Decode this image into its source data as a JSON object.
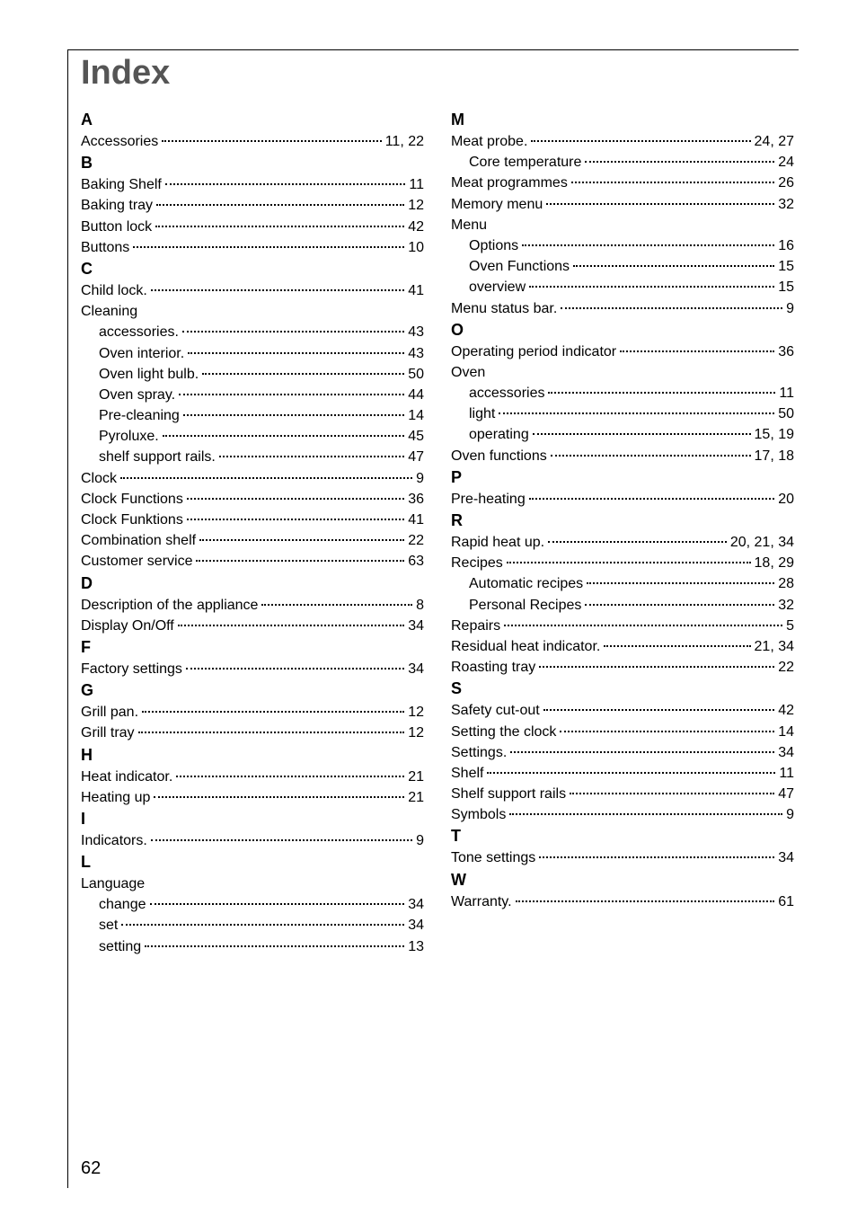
{
  "title": "Index",
  "page_number": "62",
  "left_column": [
    {
      "type": "letter",
      "text": "A"
    },
    {
      "type": "entry",
      "label": "Accessories",
      "page": "11, 22"
    },
    {
      "type": "letter",
      "text": "B"
    },
    {
      "type": "entry",
      "label": "Baking Shelf",
      "page": "11"
    },
    {
      "type": "entry",
      "label": "Baking tray",
      "page": "12"
    },
    {
      "type": "entry",
      "label": "Button lock",
      "page": "42"
    },
    {
      "type": "entry",
      "label": "Buttons",
      "page": "10"
    },
    {
      "type": "letter",
      "text": "C"
    },
    {
      "type": "entry",
      "label": "Child lock.",
      "page": "41"
    },
    {
      "type": "heading",
      "label": "Cleaning"
    },
    {
      "type": "subentry",
      "label": "accessories.",
      "page": "43"
    },
    {
      "type": "subentry",
      "label": "Oven interior.",
      "page": "43"
    },
    {
      "type": "subentry",
      "label": "Oven light bulb.",
      "page": "50"
    },
    {
      "type": "subentry",
      "label": "Oven spray.",
      "page": "44"
    },
    {
      "type": "subentry",
      "label": "Pre-cleaning",
      "page": "14"
    },
    {
      "type": "subentry",
      "label": "Pyroluxe.",
      "page": "45"
    },
    {
      "type": "subentry",
      "label": "shelf support rails.",
      "page": "47"
    },
    {
      "type": "entry",
      "label": "Clock",
      "page": "9"
    },
    {
      "type": "entry",
      "label": "Clock Functions",
      "page": "36"
    },
    {
      "type": "entry",
      "label": "Clock Funktions",
      "page": "41"
    },
    {
      "type": "entry",
      "label": "Combination shelf",
      "page": "22"
    },
    {
      "type": "entry",
      "label": "Customer service",
      "page": "63"
    },
    {
      "type": "letter",
      "text": "D"
    },
    {
      "type": "entry",
      "label": "Description of the appliance",
      "page": "8"
    },
    {
      "type": "entry",
      "label": "Display On/Off",
      "page": "34"
    },
    {
      "type": "letter",
      "text": "F"
    },
    {
      "type": "entry",
      "label": "Factory settings",
      "page": "34"
    },
    {
      "type": "letter",
      "text": "G"
    },
    {
      "type": "entry",
      "label": "Grill pan.",
      "page": "12"
    },
    {
      "type": "entry",
      "label": "Grill tray",
      "page": "12"
    },
    {
      "type": "letter",
      "text": "H"
    },
    {
      "type": "entry",
      "label": "Heat indicator.",
      "page": "21"
    },
    {
      "type": "entry",
      "label": "Heating up",
      "page": "21"
    },
    {
      "type": "letter",
      "text": "I"
    },
    {
      "type": "entry",
      "label": "Indicators.",
      "page": "9"
    },
    {
      "type": "letter",
      "text": "L"
    },
    {
      "type": "heading",
      "label": "Language"
    },
    {
      "type": "subentry",
      "label": "change",
      "page": "34"
    },
    {
      "type": "subentry",
      "label": "set",
      "page": "34"
    },
    {
      "type": "subentry",
      "label": "setting",
      "page": "13"
    }
  ],
  "right_column": [
    {
      "type": "letter",
      "text": "M"
    },
    {
      "type": "entry",
      "label": "Meat probe.",
      "page": "24, 27"
    },
    {
      "type": "subentry",
      "label": "Core temperature",
      "page": "24"
    },
    {
      "type": "entry",
      "label": "Meat programmes",
      "page": "26"
    },
    {
      "type": "entry",
      "label": "Memory menu",
      "page": "32"
    },
    {
      "type": "heading",
      "label": "Menu"
    },
    {
      "type": "subentry",
      "label": "Options",
      "page": "16"
    },
    {
      "type": "subentry",
      "label": "Oven Functions",
      "page": "15"
    },
    {
      "type": "subentry",
      "label": "overview",
      "page": "15"
    },
    {
      "type": "entry",
      "label": "Menu status bar.",
      "page": "9"
    },
    {
      "type": "letter",
      "text": "O"
    },
    {
      "type": "entry",
      "label": "Operating period indicator",
      "page": "36"
    },
    {
      "type": "heading",
      "label": "Oven"
    },
    {
      "type": "subentry",
      "label": "accessories",
      "page": "11"
    },
    {
      "type": "subentry",
      "label": "light",
      "page": "50"
    },
    {
      "type": "subentry",
      "label": "operating",
      "page": "15, 19"
    },
    {
      "type": "entry",
      "label": "Oven functions",
      "page": "17, 18"
    },
    {
      "type": "letter",
      "text": "P"
    },
    {
      "type": "entry",
      "label": "Pre-heating",
      "page": "20"
    },
    {
      "type": "letter",
      "text": "R"
    },
    {
      "type": "entry",
      "label": "Rapid heat up.",
      "page": "20, 21, 34"
    },
    {
      "type": "entry",
      "label": "Recipes",
      "page": "18, 29"
    },
    {
      "type": "subentry",
      "label": "Automatic recipes",
      "page": "28"
    },
    {
      "type": "subentry",
      "label": "Personal Recipes",
      "page": "32"
    },
    {
      "type": "entry",
      "label": "Repairs",
      "page": "5"
    },
    {
      "type": "entry",
      "label": "Residual heat indicator.",
      "page": "21, 34"
    },
    {
      "type": "entry",
      "label": "Roasting tray",
      "page": "22"
    },
    {
      "type": "letter",
      "text": "S"
    },
    {
      "type": "entry",
      "label": "Safety cut-out",
      "page": "42"
    },
    {
      "type": "entry",
      "label": "Setting the clock",
      "page": "14"
    },
    {
      "type": "entry",
      "label": "Settings.",
      "page": "34"
    },
    {
      "type": "entry",
      "label": "Shelf",
      "page": "11"
    },
    {
      "type": "entry",
      "label": "Shelf support rails",
      "page": "47"
    },
    {
      "type": "entry",
      "label": "Symbols",
      "page": "9"
    },
    {
      "type": "letter",
      "text": "T"
    },
    {
      "type": "entry",
      "label": "Tone settings",
      "page": "34"
    },
    {
      "type": "letter",
      "text": "W"
    },
    {
      "type": "entry",
      "label": "Warranty.",
      "page": "61"
    }
  ]
}
